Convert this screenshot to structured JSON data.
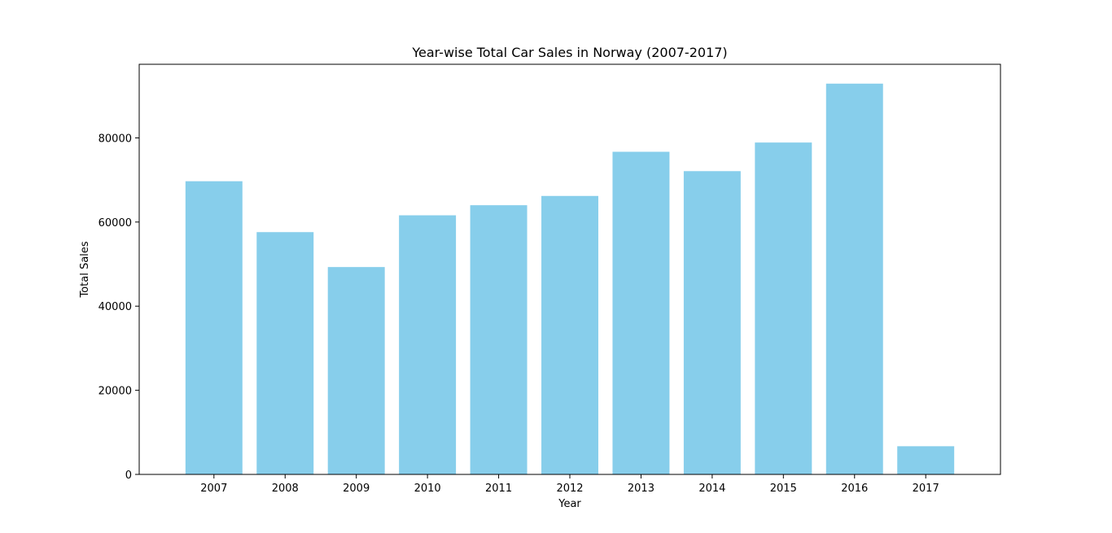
{
  "chart_data": {
    "type": "bar",
    "title": "Year-wise Total Car Sales in Norway (2007-2017)",
    "xlabel": "Year",
    "ylabel": "Total Sales",
    "categories": [
      "2007",
      "2008",
      "2009",
      "2010",
      "2011",
      "2012",
      "2013",
      "2014",
      "2015",
      "2016",
      "2017"
    ],
    "values": [
      69700,
      57600,
      49300,
      61600,
      64000,
      66200,
      76700,
      72100,
      78900,
      92900,
      6700
    ],
    "ylim": [
      0,
      97500
    ],
    "yticks": [
      0,
      20000,
      40000,
      60000,
      80000
    ],
    "grid": false,
    "legend": "none",
    "bar_color": "#87ceeb"
  }
}
